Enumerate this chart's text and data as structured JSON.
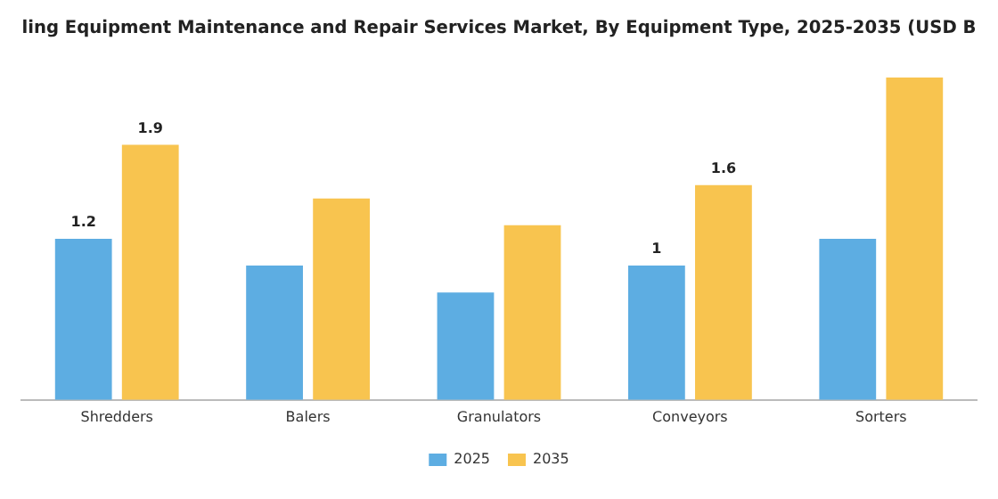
{
  "chart_data": {
    "type": "bar",
    "title": "ling Equipment Maintenance and Repair Services Market, By Equipment Type, 2025-2035 (USD B",
    "categories": [
      "Shredders",
      "Balers",
      "Granulators",
      "Conveyors",
      "Sorters"
    ],
    "series": [
      {
        "name": "2025",
        "color": "#5dade2",
        "values": [
          1.2,
          1.0,
          0.8,
          1.0,
          1.2
        ],
        "value_labels": [
          "1.2",
          null,
          null,
          "1",
          null
        ]
      },
      {
        "name": "2035",
        "color": "#f8c44f",
        "values": [
          1.9,
          1.5,
          1.3,
          1.6,
          2.4
        ],
        "value_labels": [
          "1.9",
          null,
          null,
          "1.6",
          null
        ]
      }
    ],
    "legend": "bottom",
    "grid": false,
    "tick_labels": "x"
  }
}
